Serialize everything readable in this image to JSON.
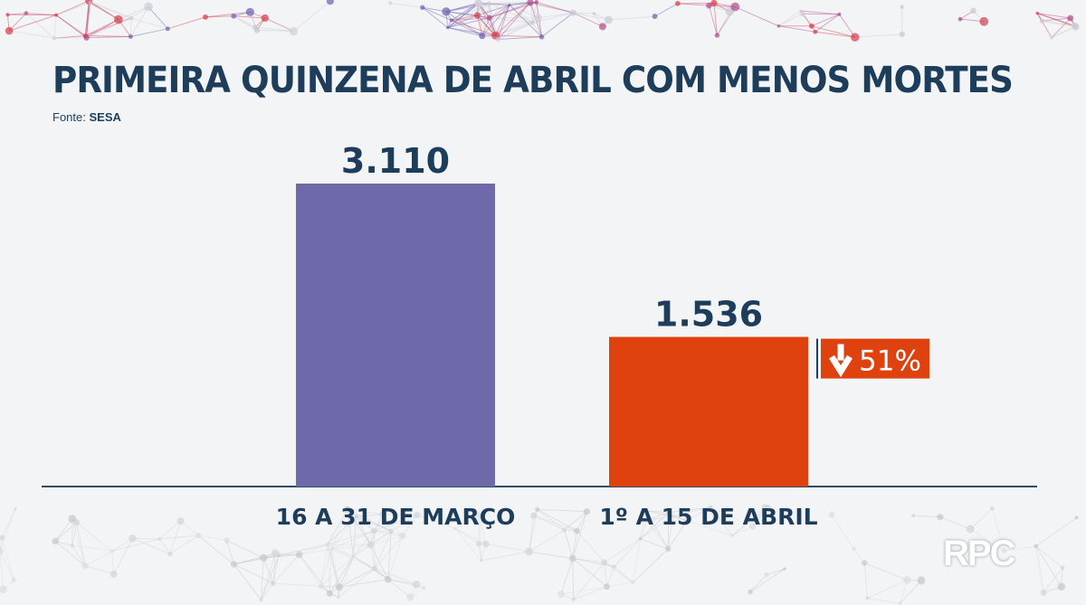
{
  "header": {
    "title": "PRIMEIRA QUINZENA DE ABRIL COM MENOS MORTES",
    "source_prefix": "Fonte:",
    "source_name": "SESA"
  },
  "chart_data": {
    "type": "bar",
    "categories": [
      "16 A 31 DE MARÇO",
      "1º A 15 DE ABRIL"
    ],
    "values": [
      3110,
      1536
    ],
    "value_labels": [
      "3.110",
      "1.536"
    ],
    "bar_colors": [
      "#6e69a8",
      "#e0420f"
    ],
    "ylim": [
      0,
      3110
    ],
    "grid": false,
    "annotation": {
      "text": "51%",
      "icon": "arrow-down-icon",
      "color": "#e0420f",
      "target_category": "1º A 15 DE ABRIL"
    }
  },
  "colors": {
    "title": "#1d3d5a",
    "axis": "#2f4a63",
    "background": "#f3f4f6"
  },
  "watermark": "RPC"
}
